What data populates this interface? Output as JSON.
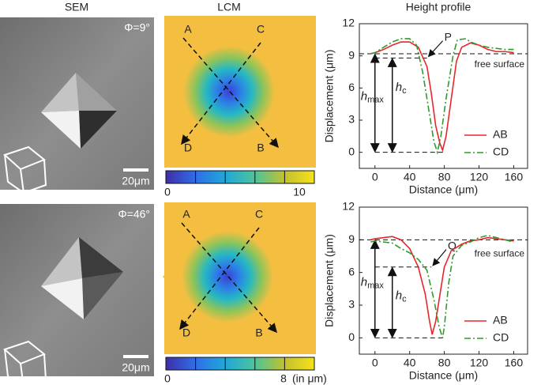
{
  "column_titles": [
    "SEM",
    "LCM",
    "Height profile"
  ],
  "panels": [
    {
      "phi": "Φ=9°",
      "scale_bar": "20μm",
      "points": [
        "A",
        "C",
        "D",
        "B"
      ],
      "colorbar_ticks": [
        0,
        10
      ]
    },
    {
      "phi": "Φ=46°",
      "scale_bar": "20μm",
      "points": [
        "A",
        "C",
        "D",
        "B"
      ],
      "colorbar_ticks": [
        0,
        8
      ],
      "colorbar_unit": "(in μm)"
    }
  ],
  "chart_data": [
    {
      "type": "line",
      "x_label": "Distance (μm)",
      "y_label": "Displacement (μm)",
      "xlim": [
        -18,
        176
      ],
      "ylim": [
        -1.5,
        12
      ],
      "xticks": [
        0,
        40,
        80,
        120,
        160
      ],
      "yticks": [
        0,
        3,
        6,
        9,
        12
      ],
      "legend": "lower right",
      "point_label": "P",
      "surface_label": "free surface",
      "h_max": [
        "h",
        "max"
      ],
      "h_c": [
        "h",
        "c"
      ],
      "surface_level": 9.2,
      "contact_level": 8.8,
      "series": [
        {
          "name": "AB",
          "color": "#e8262b",
          "dash": "solid",
          "x": [
            -5,
            0,
            10,
            20,
            30,
            40,
            50,
            60,
            65,
            70,
            75,
            78,
            82,
            88,
            94,
            100,
            110,
            120,
            130,
            140,
            150,
            160
          ],
          "values": [
            9.2,
            9.3,
            9.6,
            10.0,
            10.3,
            10.3,
            9.8,
            8.0,
            5.5,
            2.5,
            0.8,
            0.2,
            1.5,
            5.0,
            8.5,
            9.8,
            10.2,
            10.0,
            9.6,
            9.4,
            9.4,
            9.3
          ]
        },
        {
          "name": "CD",
          "color": "#2f9a2f",
          "dash": "dashdot",
          "x": [
            -5,
            0,
            10,
            20,
            30,
            40,
            48,
            55,
            62,
            68,
            72,
            76,
            82,
            90,
            95,
            105,
            110,
            120,
            130,
            140,
            150,
            160
          ],
          "values": [
            9.2,
            9.3,
            9.8,
            10.3,
            10.6,
            10.6,
            10.0,
            7.5,
            4.0,
            1.0,
            0,
            1.5,
            5.0,
            9.0,
            10.5,
            10.6,
            10.3,
            10.0,
            9.8,
            9.7,
            9.6,
            9.6
          ]
        }
      ]
    },
    {
      "type": "line",
      "x_label": "Distance (μm)",
      "y_label": "Displacement (μm)",
      "xlim": [
        -18,
        176
      ],
      "ylim": [
        -1.5,
        12
      ],
      "xticks": [
        0,
        40,
        80,
        120,
        160
      ],
      "yticks": [
        0,
        3,
        6,
        9,
        12
      ],
      "legend": "lower right",
      "point_label": "Q",
      "surface_label": "free surface",
      "h_max": [
        "h",
        "max"
      ],
      "h_c": [
        "h",
        "c"
      ],
      "surface_level": 9.0,
      "contact_level": 6.5,
      "series": [
        {
          "name": "AB",
          "color": "#e8262b",
          "dash": "solid",
          "x": [
            -5,
            0,
            10,
            20,
            30,
            40,
            50,
            58,
            63,
            66,
            70,
            75,
            80,
            88,
            100,
            110,
            120,
            130,
            140,
            150,
            160
          ],
          "values": [
            9.0,
            9.1,
            9.2,
            9.3,
            9.0,
            8.2,
            6.5,
            4.0,
            1.5,
            0.3,
            1.5,
            4.0,
            6.5,
            8.0,
            8.6,
            8.9,
            9.0,
            9.2,
            9.1,
            9.0,
            8.9
          ]
        },
        {
          "name": "CD",
          "color": "#2f9a2f",
          "dash": "dashdot",
          "x": [
            -5,
            0,
            10,
            20,
            30,
            40,
            50,
            60,
            68,
            74,
            78,
            80,
            85,
            90,
            100,
            110,
            120,
            130,
            140,
            150,
            160
          ],
          "values": [
            8.8,
            8.9,
            8.8,
            8.7,
            8.2,
            7.8,
            7.2,
            6.2,
            3.5,
            1.0,
            0,
            1.0,
            5.0,
            7.5,
            8.5,
            8.8,
            9.2,
            9.4,
            9.2,
            9.0,
            8.8
          ]
        }
      ]
    }
  ]
}
